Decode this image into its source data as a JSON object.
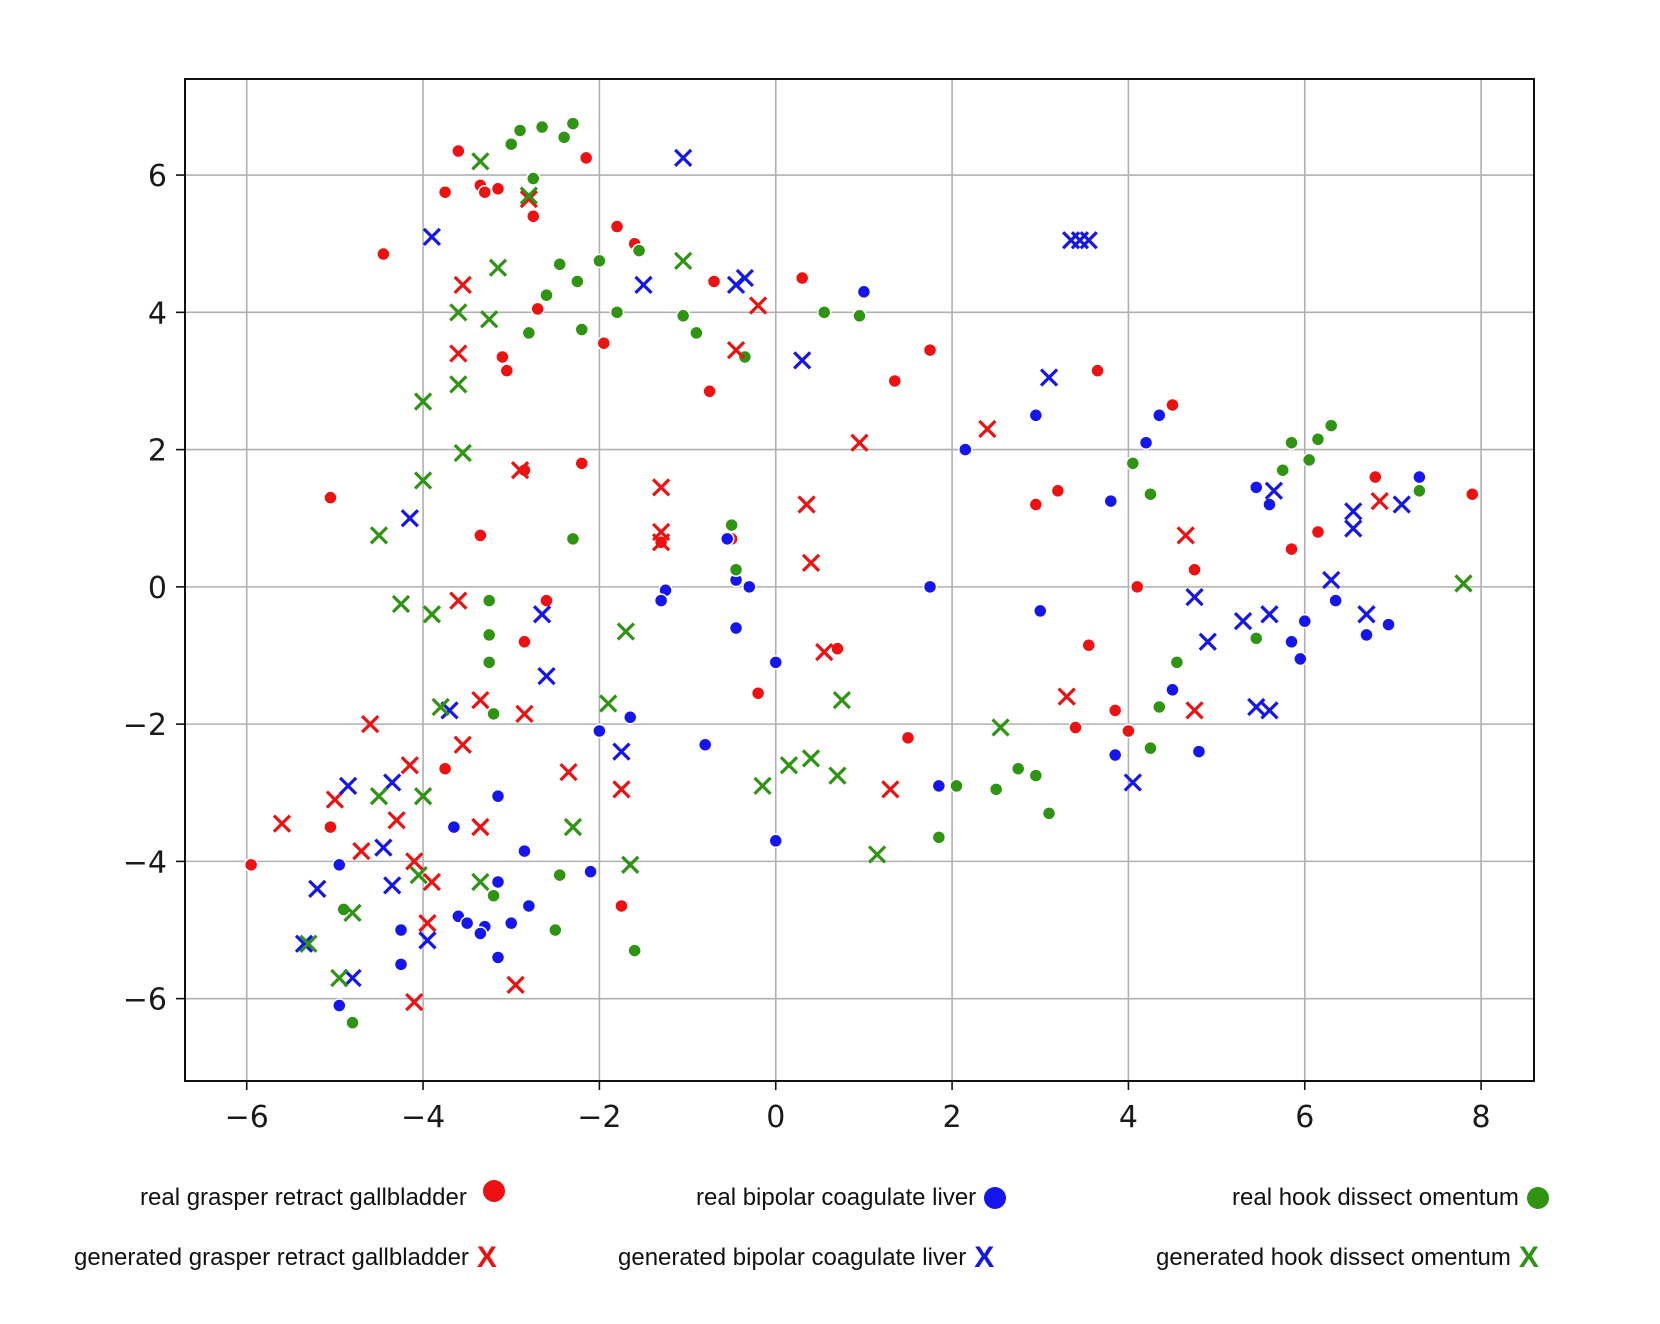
{
  "chart_data": {
    "type": "scatter",
    "title": "",
    "xlabel": "",
    "ylabel": "",
    "xlim": [
      -6.7,
      8.6
    ],
    "ylim": [
      -7.2,
      7.4
    ],
    "xticks": [
      -6,
      -4,
      -2,
      0,
      2,
      4,
      6,
      8
    ],
    "yticks": [
      -6,
      -4,
      -2,
      0,
      2,
      4,
      6
    ],
    "xtick_labels": [
      "−6",
      "−4",
      "−2",
      "0",
      "2",
      "4",
      "6",
      "8"
    ],
    "ytick_labels": [
      "−6",
      "−4",
      "−2",
      "0",
      "2",
      "4",
      "6"
    ],
    "grid": true,
    "legend_position": "bottom",
    "series": [
      {
        "name": "real grasper retract gallbladder",
        "marker": "dot",
        "color": "#ee1111",
        "points": [
          [
            -3.6,
            6.35
          ],
          [
            -3.35,
            5.85
          ],
          [
            -3.3,
            5.75
          ],
          [
            -3.15,
            5.8
          ],
          [
            -3.75,
            5.75
          ],
          [
            -2.75,
            5.4
          ],
          [
            -2.15,
            6.25
          ],
          [
            -4.45,
            4.85
          ],
          [
            -1.8,
            5.25
          ],
          [
            -1.6,
            5.0
          ],
          [
            -0.7,
            4.45
          ],
          [
            0.3,
            4.5
          ],
          [
            -2.7,
            4.05
          ],
          [
            -3.1,
            3.35
          ],
          [
            -3.05,
            3.15
          ],
          [
            -1.95,
            3.55
          ],
          [
            1.75,
            3.45
          ],
          [
            1.35,
            3.0
          ],
          [
            -0.75,
            2.85
          ],
          [
            3.65,
            3.15
          ],
          [
            4.5,
            2.65
          ],
          [
            -2.85,
            1.7
          ],
          [
            -2.2,
            1.8
          ],
          [
            -5.05,
            1.3
          ],
          [
            -3.35,
            0.75
          ],
          [
            3.2,
            1.4
          ],
          [
            2.95,
            1.2
          ],
          [
            6.8,
            1.6
          ],
          [
            7.9,
            1.35
          ],
          [
            6.15,
            0.8
          ],
          [
            5.85,
            0.55
          ],
          [
            4.75,
            0.25
          ],
          [
            4.1,
            0.0
          ],
          [
            -2.6,
            -0.2
          ],
          [
            -2.85,
            -0.8
          ],
          [
            -1.3,
            0.65
          ],
          [
            -0.5,
            0.7
          ],
          [
            0.7,
            -0.9
          ],
          [
            3.55,
            -0.85
          ],
          [
            -0.2,
            -1.55
          ],
          [
            1.5,
            -2.2
          ],
          [
            3.4,
            -2.05
          ],
          [
            3.85,
            -1.8
          ],
          [
            4.0,
            -2.1
          ],
          [
            -3.75,
            -2.65
          ],
          [
            -5.05,
            -3.5
          ],
          [
            -5.95,
            -4.05
          ],
          [
            -1.75,
            -4.65
          ]
        ]
      },
      {
        "name": "real bipolar coagulate liver",
        "marker": "dot",
        "color": "#1515ee",
        "points": [
          [
            1.0,
            4.3
          ],
          [
            4.35,
            2.5
          ],
          [
            4.2,
            2.1
          ],
          [
            2.95,
            2.5
          ],
          [
            2.15,
            2.0
          ],
          [
            7.3,
            1.6
          ],
          [
            5.45,
            1.45
          ],
          [
            5.6,
            1.2
          ],
          [
            3.8,
            1.25
          ],
          [
            -0.55,
            0.7
          ],
          [
            -0.45,
            0.1
          ],
          [
            -0.3,
            0.0
          ],
          [
            -1.25,
            -0.05
          ],
          [
            -1.3,
            -0.2
          ],
          [
            1.75,
            0.0
          ],
          [
            3.0,
            -0.35
          ],
          [
            6.35,
            -0.2
          ],
          [
            6.0,
            -0.5
          ],
          [
            6.95,
            -0.55
          ],
          [
            6.7,
            -0.7
          ],
          [
            -0.45,
            -0.6
          ],
          [
            5.85,
            -0.8
          ],
          [
            5.95,
            -1.05
          ],
          [
            0.0,
            -1.1
          ],
          [
            -1.65,
            -1.9
          ],
          [
            -2.0,
            -2.1
          ],
          [
            -0.8,
            -2.3
          ],
          [
            4.5,
            -1.5
          ],
          [
            4.8,
            -2.4
          ],
          [
            3.85,
            -2.45
          ],
          [
            1.85,
            -2.9
          ],
          [
            0.0,
            -3.7
          ],
          [
            -3.15,
            -3.05
          ],
          [
            -3.65,
            -3.5
          ],
          [
            -2.85,
            -3.85
          ],
          [
            -4.95,
            -4.05
          ],
          [
            -2.1,
            -4.15
          ],
          [
            -3.15,
            -4.3
          ],
          [
            -2.8,
            -4.65
          ],
          [
            -3.6,
            -4.8
          ],
          [
            -3.5,
            -4.9
          ],
          [
            -3.3,
            -4.95
          ],
          [
            -3.35,
            -5.05
          ],
          [
            -3.0,
            -4.9
          ],
          [
            -4.25,
            -5.0
          ],
          [
            -4.25,
            -5.5
          ],
          [
            -3.15,
            -5.4
          ],
          [
            -4.95,
            -6.1
          ]
        ]
      },
      {
        "name": "real hook dissect omentum",
        "marker": "dot",
        "color": "#2e9412",
        "points": [
          [
            -2.3,
            6.75
          ],
          [
            -2.65,
            6.7
          ],
          [
            -2.9,
            6.65
          ],
          [
            -2.4,
            6.55
          ],
          [
            -3.0,
            6.45
          ],
          [
            -2.75,
            5.95
          ],
          [
            -1.55,
            4.9
          ],
          [
            -2.0,
            4.75
          ],
          [
            -2.45,
            4.7
          ],
          [
            -2.25,
            4.45
          ],
          [
            -2.6,
            4.25
          ],
          [
            -1.8,
            4.0
          ],
          [
            -1.05,
            3.95
          ],
          [
            0.55,
            4.0
          ],
          [
            0.95,
            3.95
          ],
          [
            -2.2,
            3.75
          ],
          [
            -2.8,
            3.7
          ],
          [
            -0.9,
            3.7
          ],
          [
            -0.35,
            3.35
          ],
          [
            6.3,
            2.35
          ],
          [
            6.15,
            2.15
          ],
          [
            5.85,
            2.1
          ],
          [
            6.05,
            1.85
          ],
          [
            5.75,
            1.7
          ],
          [
            4.05,
            1.8
          ],
          [
            7.3,
            1.4
          ],
          [
            4.25,
            1.35
          ],
          [
            -2.3,
            0.7
          ],
          [
            -0.5,
            0.9
          ],
          [
            -0.45,
            0.25
          ],
          [
            -3.25,
            -0.2
          ],
          [
            -3.25,
            -0.7
          ],
          [
            -3.25,
            -1.1
          ],
          [
            5.45,
            -0.75
          ],
          [
            4.55,
            -1.1
          ],
          [
            4.35,
            -1.75
          ],
          [
            -3.2,
            -1.85
          ],
          [
            4.25,
            -2.35
          ],
          [
            2.75,
            -2.65
          ],
          [
            2.05,
            -2.9
          ],
          [
            2.5,
            -2.95
          ],
          [
            2.95,
            -2.75
          ],
          [
            3.1,
            -3.3
          ],
          [
            1.85,
            -3.65
          ],
          [
            -2.45,
            -4.2
          ],
          [
            -3.2,
            -4.5
          ],
          [
            -4.9,
            -4.7
          ],
          [
            -2.5,
            -5.0
          ],
          [
            -1.6,
            -5.3
          ],
          [
            -4.8,
            -6.35
          ]
        ]
      },
      {
        "name": "generated grasper retract gallbladder",
        "marker": "x",
        "color": "#ee1111",
        "points": [
          [
            -2.8,
            5.65
          ],
          [
            -3.55,
            4.4
          ],
          [
            -0.2,
            4.1
          ],
          [
            -3.6,
            3.4
          ],
          [
            -0.45,
            3.45
          ],
          [
            0.95,
            2.1
          ],
          [
            2.4,
            2.3
          ],
          [
            -2.9,
            1.7
          ],
          [
            -1.3,
            1.45
          ],
          [
            0.35,
            1.2
          ],
          [
            -1.3,
            0.8
          ],
          [
            -1.3,
            0.65
          ],
          [
            0.4,
            0.35
          ],
          [
            4.65,
            0.75
          ],
          [
            6.85,
            1.25
          ],
          [
            -3.6,
            -0.2
          ],
          [
            0.55,
            -0.95
          ],
          [
            -3.35,
            -1.65
          ],
          [
            -2.85,
            -1.85
          ],
          [
            3.3,
            -1.6
          ],
          [
            4.75,
            -1.8
          ],
          [
            -4.6,
            -2.0
          ],
          [
            -3.55,
            -2.3
          ],
          [
            -4.15,
            -2.6
          ],
          [
            -2.35,
            -2.7
          ],
          [
            -1.75,
            -2.95
          ],
          [
            1.3,
            -2.95
          ],
          [
            -5.0,
            -3.1
          ],
          [
            -4.3,
            -3.4
          ],
          [
            -5.6,
            -3.45
          ],
          [
            -3.35,
            -3.5
          ],
          [
            -4.7,
            -3.85
          ],
          [
            -4.1,
            -4.0
          ],
          [
            -3.9,
            -4.3
          ],
          [
            -3.95,
            -4.9
          ],
          [
            -2.95,
            -5.8
          ],
          [
            -4.1,
            -6.05
          ]
        ]
      },
      {
        "name": "generated bipolar coagulate liver",
        "marker": "x",
        "color": "#1515ee",
        "points": [
          [
            -1.05,
            6.25
          ],
          [
            -3.9,
            5.1
          ],
          [
            3.35,
            5.05
          ],
          [
            3.45,
            5.05
          ],
          [
            3.55,
            5.05
          ],
          [
            -0.35,
            4.5
          ],
          [
            -0.45,
            4.4
          ],
          [
            -1.5,
            4.4
          ],
          [
            0.3,
            3.3
          ],
          [
            3.1,
            3.05
          ],
          [
            -4.15,
            1.0
          ],
          [
            5.65,
            1.4
          ],
          [
            6.55,
            1.1
          ],
          [
            6.55,
            0.85
          ],
          [
            7.1,
            1.2
          ],
          [
            6.3,
            0.1
          ],
          [
            4.75,
            -0.15
          ],
          [
            -2.65,
            -0.4
          ],
          [
            5.6,
            -0.4
          ],
          [
            6.7,
            -0.4
          ],
          [
            5.3,
            -0.5
          ],
          [
            4.9,
            -0.8
          ],
          [
            -2.6,
            -1.3
          ],
          [
            5.45,
            -1.75
          ],
          [
            5.6,
            -1.8
          ],
          [
            -3.7,
            -1.8
          ],
          [
            -1.75,
            -2.4
          ],
          [
            4.05,
            -2.85
          ],
          [
            -4.85,
            -2.9
          ],
          [
            -4.35,
            -2.85
          ],
          [
            -4.45,
            -3.8
          ],
          [
            -4.35,
            -4.35
          ],
          [
            -5.2,
            -4.4
          ],
          [
            -5.35,
            -5.2
          ],
          [
            -3.95,
            -5.15
          ],
          [
            -4.8,
            -5.7
          ]
        ]
      },
      {
        "name": "generated hook dissect omentum",
        "marker": "x",
        "color": "#2e9412",
        "points": [
          [
            -3.35,
            6.2
          ],
          [
            -2.8,
            5.7
          ],
          [
            -3.15,
            4.65
          ],
          [
            -1.05,
            4.75
          ],
          [
            -3.6,
            4.0
          ],
          [
            -3.25,
            3.9
          ],
          [
            -3.6,
            2.95
          ],
          [
            -4.0,
            2.7
          ],
          [
            -3.55,
            1.95
          ],
          [
            -4.0,
            1.55
          ],
          [
            -4.5,
            0.75
          ],
          [
            7.8,
            0.05
          ],
          [
            -4.25,
            -0.25
          ],
          [
            -3.9,
            -0.4
          ],
          [
            -1.7,
            -0.65
          ],
          [
            -1.9,
            -1.7
          ],
          [
            -3.8,
            -1.75
          ],
          [
            0.75,
            -1.65
          ],
          [
            2.55,
            -2.05
          ],
          [
            0.15,
            -2.6
          ],
          [
            0.4,
            -2.5
          ],
          [
            0.7,
            -2.75
          ],
          [
            -0.15,
            -2.9
          ],
          [
            -4.5,
            -3.05
          ],
          [
            -4.0,
            -3.05
          ],
          [
            -2.3,
            -3.5
          ],
          [
            1.15,
            -3.9
          ],
          [
            -1.65,
            -4.05
          ],
          [
            -4.05,
            -4.2
          ],
          [
            -3.35,
            -4.3
          ],
          [
            -4.8,
            -4.75
          ],
          [
            -5.3,
            -5.2
          ],
          [
            -4.95,
            -5.7
          ]
        ]
      }
    ]
  },
  "legend": {
    "real_grasper": "real grasper retract gallbladder",
    "real_bipolar": "real bipolar coagulate liver",
    "real_hook": "real hook dissect omentum",
    "gen_grasper": "generated grasper retract gallbladder",
    "gen_bipolar": "generated bipolar coagulate liver",
    "gen_hook": "generated hook dissect omentum",
    "x_glyph": "X"
  }
}
